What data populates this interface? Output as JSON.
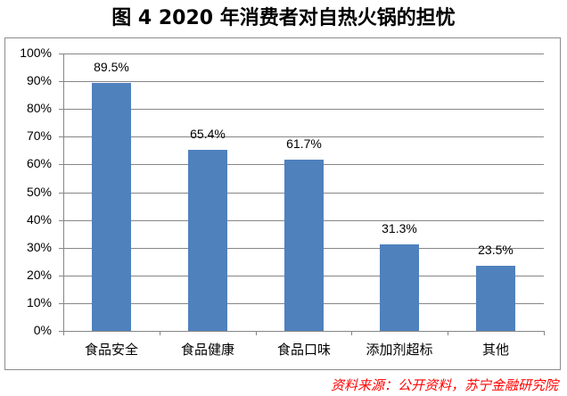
{
  "title": "图 4  2020 年消费者对自热火锅的担忧",
  "source": "资料来源：公开资料，苏宁金融研究院",
  "y_ticks": [
    "100%",
    "90%",
    "80%",
    "70%",
    "60%",
    "50%",
    "40%",
    "30%",
    "20%",
    "10%",
    "0%"
  ],
  "bars": [
    {
      "category": "食品安全",
      "value": 89.5,
      "label": "89.5%"
    },
    {
      "category": "食品健康",
      "value": 65.4,
      "label": "65.4%"
    },
    {
      "category": "食品口味",
      "value": 61.7,
      "label": "61.7%"
    },
    {
      "category": "添加剂超标",
      "value": 31.3,
      "label": "31.3%"
    },
    {
      "category": "其他",
      "value": 23.5,
      "label": "23.5%"
    }
  ],
  "colors": {
    "bar": "#4f81bd",
    "source": "#ff0000",
    "grid": "#868686"
  },
  "chart_data": {
    "type": "bar",
    "title": "图 4  2020 年消费者对自热火锅的担忧",
    "categories": [
      "食品安全",
      "食品健康",
      "食品口味",
      "添加剂超标",
      "其他"
    ],
    "values": [
      89.5,
      65.4,
      61.7,
      31.3,
      23.5
    ],
    "value_labels": [
      "89.5%",
      "65.4%",
      "61.7%",
      "31.3%",
      "23.5%"
    ],
    "xlabel": "",
    "ylabel": "",
    "ylim": [
      0,
      100
    ],
    "y_tick_format": "percent",
    "y_ticks": [
      0,
      10,
      20,
      30,
      40,
      50,
      60,
      70,
      80,
      90,
      100
    ],
    "grid": true,
    "legend": null,
    "series_color": "#4f81bd",
    "annotation": "资料来源：公开资料，苏宁金融研究院"
  }
}
